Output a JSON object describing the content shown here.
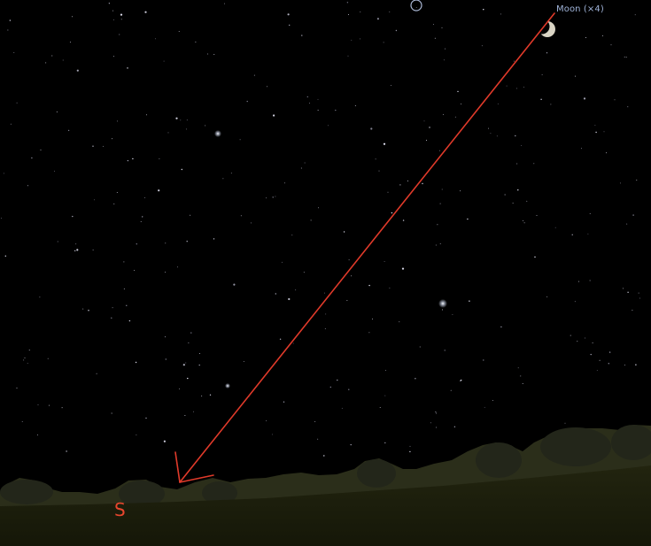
{
  "sky_view": {
    "moon_label": "Moon (×4)",
    "cardinal_direction": "S"
  },
  "icons": {
    "moon": "crescent-moon-icon",
    "object_marker": "circle-marker-icon",
    "direction_arrow": "pointer-arrow-icon"
  },
  "colors": {
    "sky": "#000000",
    "ground": "#1a1c0d",
    "arrow": "#e03a2a",
    "label": "#9fb3d8",
    "cardinal": "#e8462e"
  }
}
